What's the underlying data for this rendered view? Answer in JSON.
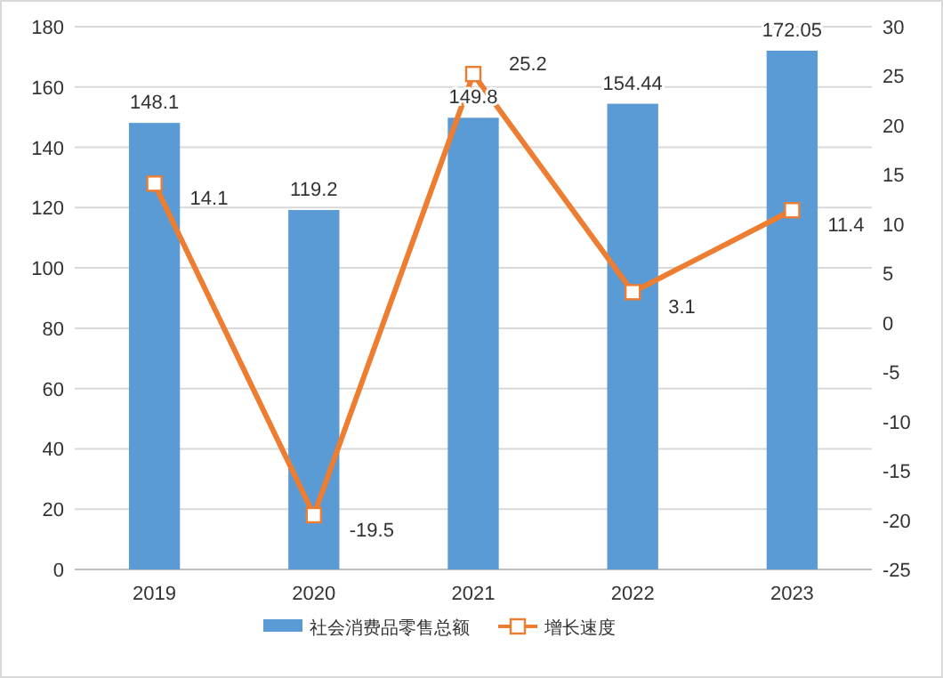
{
  "chart_data": {
    "type": "bar",
    "categories": [
      "2019",
      "2020",
      "2021",
      "2022",
      "2023"
    ],
    "series": [
      {
        "name": "社会消费品零售总额",
        "color": "#5b9bd5",
        "values": [
          148.1,
          119.2,
          149.8,
          154.44,
          172.05
        ]
      },
      {
        "name": "增长速度",
        "type": "line",
        "axis": "y2",
        "color": "#ed7d31",
        "marker": "square",
        "values": [
          14.1,
          -19.5,
          25.2,
          3.1,
          11.4
        ]
      }
    ],
    "ylim": [
      0,
      180
    ],
    "yticks": [
      0,
      20,
      40,
      60,
      80,
      100,
      120,
      140,
      160,
      180
    ],
    "y2lim": [
      -25,
      30
    ],
    "y2ticks": [
      -25,
      -20,
      -15,
      -10,
      -5,
      0,
      5,
      10,
      15,
      20,
      25,
      30
    ],
    "grid": "y",
    "legend": "bottom",
    "data_labels": true
  }
}
